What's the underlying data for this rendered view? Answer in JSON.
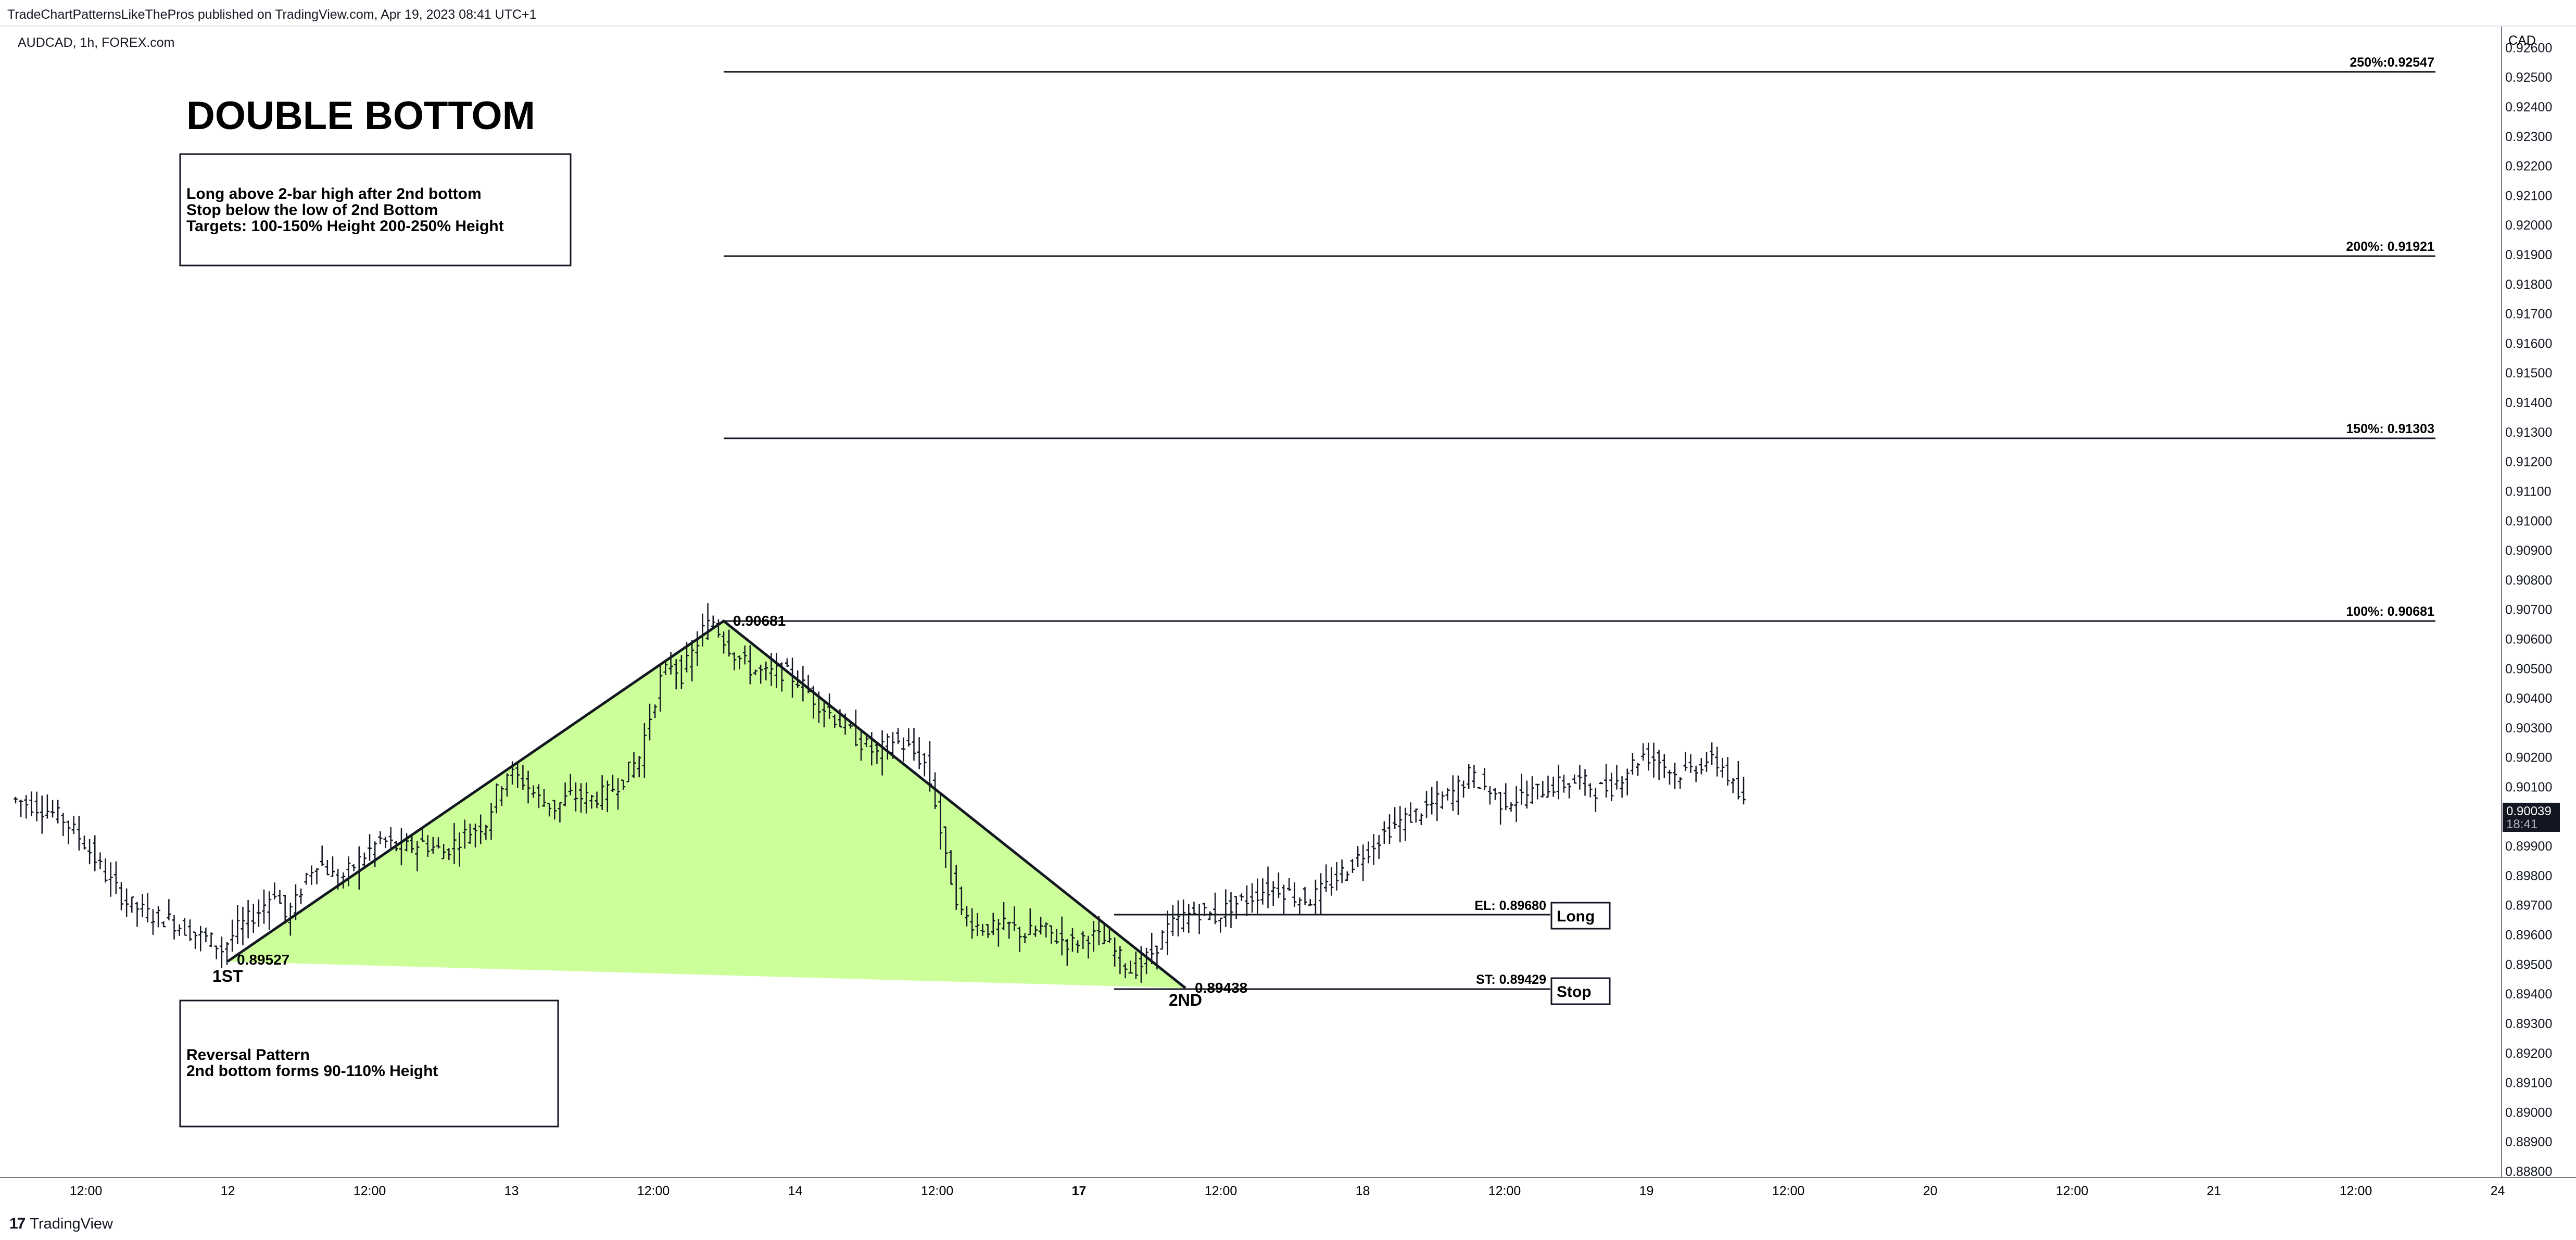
{
  "header": {
    "publisher_line": "TradeChartPatternsLikeThePros published on TradingView.com, Apr 19, 2023 08:41 UTC+1",
    "symbol_line": "AUDCAD, 1h, FOREX.com"
  },
  "footer": {
    "brand": "TradingView",
    "logo_glyph": "17"
  },
  "annotations": {
    "title": "DOUBLE BOTTOM",
    "rules_box": [
      "Long above 2-bar high after 2nd bottom",
      "Stop below the low of 2nd Bottom",
      "Targets: 100-150% Height 200-250% Height"
    ],
    "pattern_box": [
      "Reversal Pattern",
      "2nd bottom forms 90-110% Height"
    ],
    "first_bottom_label": "1ST",
    "second_bottom_label": "2ND",
    "first_bottom_price": "0.89527",
    "peak_price": "0.90681",
    "second_bottom_price": "0.89438",
    "entry_label": "EL: 0.89680",
    "entry_tag": "Long",
    "stop_label": "ST: 0.89429",
    "stop_tag": "Stop",
    "target_250": "250%:0.92547",
    "target_200": "200%: 0.91921",
    "target_150": "150%: 0.91303",
    "target_100": "100%: 0.90681"
  },
  "chart_data": {
    "type": "ohlc",
    "currency": "CAD",
    "y_ticks": [
      "0.92600",
      "0.92500",
      "0.92400",
      "0.92300",
      "0.92200",
      "0.92100",
      "0.92000",
      "0.91900",
      "0.91800",
      "0.91700",
      "0.91600",
      "0.91500",
      "0.91400",
      "0.91300",
      "0.91200",
      "0.91100",
      "0.91000",
      "0.90900",
      "0.90800",
      "0.90700",
      "0.90600",
      "0.90500",
      "0.90400",
      "0.90300",
      "0.90200",
      "0.90100",
      "0.90000",
      "0.89900",
      "0.89800",
      "0.89700",
      "0.89600",
      "0.89500",
      "0.89400",
      "0.89300",
      "0.89200",
      "0.89100",
      "0.89000",
      "0.88900",
      "0.88800"
    ],
    "ylim": [
      0.888,
      0.9262
    ],
    "x_ticks": [
      "12:00",
      "12",
      "12:00",
      "13",
      "12:00",
      "14",
      "12:00",
      "17",
      "12:00",
      "18",
      "12:00",
      "19",
      "12:00",
      "20",
      "12:00",
      "21",
      "12:00",
      "24"
    ],
    "x_tick_bold": [
      "17"
    ],
    "last_price": "0.90039",
    "countdown": "18:41",
    "colors": {
      "bars": "#131722",
      "fill": "#ccff99",
      "line": "#131722",
      "last_price_bg": "#131722"
    },
    "key_points": {
      "first_bottom": 0.89527,
      "peak": 0.90681,
      "second_bottom": 0.89438,
      "entry": 0.8968,
      "stop": 0.89429,
      "targets": [
        0.90681,
        0.91303,
        0.91921,
        0.92547
      ]
    },
    "path_points": [
      [
        0,
        0.9006
      ],
      [
        4,
        0.9004
      ],
      [
        7,
        0.9002
      ],
      [
        10,
        0.8999
      ],
      [
        14,
        0.8991
      ],
      [
        18,
        0.898
      ],
      [
        22,
        0.8971
      ],
      [
        26,
        0.8967
      ],
      [
        30,
        0.8965
      ],
      [
        34,
        0.8961
      ],
      [
        38,
        0.8958
      ],
      [
        40,
        0.8955
      ],
      [
        43,
        0.8962
      ],
      [
        47,
        0.8968
      ],
      [
        50,
        0.8975
      ],
      [
        52,
        0.8966
      ],
      [
        54,
        0.8971
      ],
      [
        56,
        0.898
      ],
      [
        58,
        0.8985
      ],
      [
        60,
        0.8982
      ],
      [
        62,
        0.8978
      ],
      [
        66,
        0.8985
      ],
      [
        70,
        0.8992
      ],
      [
        74,
        0.8989
      ],
      [
        78,
        0.8991
      ],
      [
        82,
        0.8988
      ],
      [
        86,
        0.8994
      ],
      [
        90,
        0.8998
      ],
      [
        92,
        0.9008
      ],
      [
        94,
        0.9015
      ],
      [
        97,
        0.9012
      ],
      [
        100,
        0.9006
      ],
      [
        103,
        0.9003
      ],
      [
        106,
        0.9007
      ],
      [
        110,
        0.9006
      ],
      [
        113,
        0.9008
      ],
      [
        116,
        0.9013
      ],
      [
        119,
        0.902
      ],
      [
        121,
        0.9034
      ],
      [
        123,
        0.9046
      ],
      [
        125,
        0.9052
      ],
      [
        127,
        0.9048
      ],
      [
        129,
        0.9055
      ],
      [
        131,
        0.9063
      ],
      [
        133,
        0.9066
      ],
      [
        135,
        0.906
      ],
      [
        137,
        0.9055
      ],
      [
        140,
        0.905
      ],
      [
        143,
        0.9048
      ],
      [
        146,
        0.9049
      ],
      [
        149,
        0.9046
      ],
      [
        152,
        0.904
      ],
      [
        155,
        0.9035
      ],
      [
        158,
        0.903
      ],
      [
        161,
        0.9025
      ],
      [
        164,
        0.9021
      ],
      [
        167,
        0.9026
      ],
      [
        170,
        0.9023
      ],
      [
        173,
        0.9018
      ],
      [
        175,
        0.9005
      ],
      [
        177,
        0.8985
      ],
      [
        180,
        0.8967
      ],
      [
        183,
        0.8963
      ],
      [
        186,
        0.8962
      ],
      [
        189,
        0.8963
      ],
      [
        192,
        0.896
      ],
      [
        195,
        0.8962
      ],
      [
        198,
        0.8959
      ],
      [
        201,
        0.8957
      ],
      [
        204,
        0.896
      ],
      [
        207,
        0.8958
      ],
      [
        210,
        0.8952
      ],
      [
        212,
        0.8948
      ],
      [
        214,
        0.895
      ],
      [
        216,
        0.8954
      ],
      [
        219,
        0.8962
      ],
      [
        222,
        0.8966
      ],
      [
        225,
        0.8968
      ],
      [
        228,
        0.8966
      ],
      [
        231,
        0.897
      ],
      [
        234,
        0.8972
      ],
      [
        237,
        0.8975
      ],
      [
        240,
        0.8976
      ],
      [
        243,
        0.8973
      ],
      [
        246,
        0.8972
      ],
      [
        249,
        0.8976
      ],
      [
        252,
        0.8981
      ],
      [
        255,
        0.8986
      ],
      [
        258,
        0.8991
      ],
      [
        261,
        0.8996
      ],
      [
        264,
        0.8999
      ],
      [
        267,
        0.9002
      ],
      [
        270,
        0.9005
      ],
      [
        273,
        0.9008
      ],
      [
        276,
        0.9014
      ],
      [
        279,
        0.901
      ],
      [
        282,
        0.9005
      ],
      [
        285,
        0.9006
      ],
      [
        288,
        0.9008
      ],
      [
        291,
        0.901
      ],
      [
        294,
        0.9011
      ],
      [
        297,
        0.9012
      ],
      [
        300,
        0.9009
      ],
      [
        303,
        0.901
      ],
      [
        306,
        0.9016
      ],
      [
        309,
        0.9021
      ],
      [
        312,
        0.9019
      ],
      [
        315,
        0.9014
      ],
      [
        318,
        0.9016
      ],
      [
        321,
        0.9019
      ],
      [
        324,
        0.9017
      ],
      [
        326,
        0.901
      ],
      [
        328,
        0.9004
      ]
    ]
  }
}
